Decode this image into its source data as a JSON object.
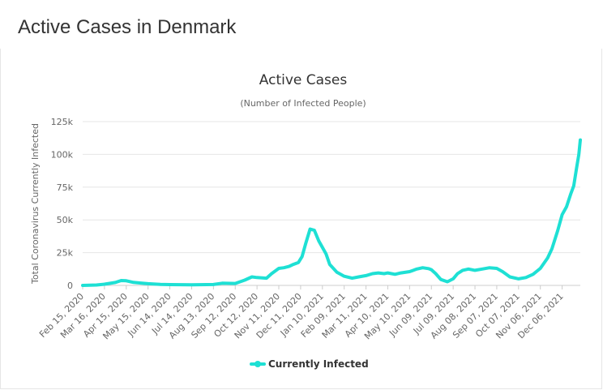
{
  "page": {
    "title": "Active Cases in Denmark"
  },
  "chart_data": {
    "type": "line",
    "title": "Active Cases",
    "subtitle": "(Number of Infected People)",
    "xlabel": "",
    "ylabel": "Total Coronavirus Currently Infected",
    "ylim": [
      0,
      125000
    ],
    "yticks": [
      0,
      25000,
      50000,
      75000,
      100000,
      125000
    ],
    "ytick_labels": [
      "0",
      "25k",
      "50k",
      "75k",
      "100k",
      "125k"
    ],
    "x_range": [
      "Feb 15, 2020",
      "Dec 31, 2021"
    ],
    "xtick_labels": [
      "Feb 15, 2020",
      "Mar 16, 2020",
      "Apr 15, 2020",
      "May 15, 2020",
      "Jun 14, 2020",
      "Jul 14, 2020",
      "Aug 13, 2020",
      "Sep 12, 2020",
      "Oct 12, 2020",
      "Nov 11, 2020",
      "Dec 11, 2020",
      "Jan 10, 2021",
      "Feb 09, 2021",
      "Mar 11, 2021",
      "Apr 10, 2021",
      "May 10, 2021",
      "Jun 09, 2021",
      "Jul 09, 2021",
      "Aug 08, 2021",
      "Sep 07, 2021",
      "Oct 07, 2021",
      "Nov 06, 2021",
      "Dec 06, 2021"
    ],
    "grid": true,
    "legend": "bottom-center",
    "series": [
      {
        "name": "Currently Infected",
        "color": "#1ee0d4",
        "points": [
          [
            "Feb 15, 2020",
            0
          ],
          [
            "Mar 05, 2020",
            300
          ],
          [
            "Mar 16, 2020",
            900
          ],
          [
            "Mar 31, 2020",
            2200
          ],
          [
            "Apr 08, 2020",
            3700
          ],
          [
            "Apr 15, 2020",
            3500
          ],
          [
            "Apr 25, 2020",
            2300
          ],
          [
            "May 05, 2020",
            1800
          ],
          [
            "May 15, 2020",
            1300
          ],
          [
            "Jun 01, 2020",
            800
          ],
          [
            "Jun 14, 2020",
            600
          ],
          [
            "Jul 14, 2020",
            500
          ],
          [
            "Aug 13, 2020",
            700
          ],
          [
            "Aug 25, 2020",
            1700
          ],
          [
            "Sep 12, 2020",
            1500
          ],
          [
            "Sep 25, 2020",
            4000
          ],
          [
            "Oct 05, 2020",
            6500
          ],
          [
            "Oct 12, 2020",
            6000
          ],
          [
            "Oct 25, 2020",
            5500
          ],
          [
            "Nov 01, 2020",
            9000
          ],
          [
            "Nov 11, 2020",
            13000
          ],
          [
            "Nov 18, 2020",
            13500
          ],
          [
            "Nov 25, 2020",
            14500
          ],
          [
            "Dec 01, 2020",
            16000
          ],
          [
            "Dec 08, 2020",
            17500
          ],
          [
            "Dec 13, 2020",
            22000
          ],
          [
            "Dec 18, 2020",
            32000
          ],
          [
            "Dec 24, 2020",
            43000
          ],
          [
            "Dec 30, 2020",
            42000
          ],
          [
            "Jan 05, 2021",
            34000
          ],
          [
            "Jan 10, 2021",
            29000
          ],
          [
            "Jan 15, 2021",
            24000
          ],
          [
            "Jan 20, 2021",
            16000
          ],
          [
            "Jan 30, 2021",
            10000
          ],
          [
            "Feb 09, 2021",
            7000
          ],
          [
            "Feb 20, 2021",
            5500
          ],
          [
            "Mar 01, 2021",
            6500
          ],
          [
            "Mar 11, 2021",
            7500
          ],
          [
            "Mar 20, 2021",
            9000
          ],
          [
            "Mar 28, 2021",
            9500
          ],
          [
            "Apr 05, 2021",
            9000
          ],
          [
            "Apr 10, 2021",
            9500
          ],
          [
            "Apr 20, 2021",
            8500
          ],
          [
            "Apr 28, 2021",
            9500
          ],
          [
            "May 10, 2021",
            10500
          ],
          [
            "May 20, 2021",
            12500
          ],
          [
            "May 28, 2021",
            13500
          ],
          [
            "Jun 05, 2021",
            12800
          ],
          [
            "Jun 09, 2021",
            12000
          ],
          [
            "Jun 15, 2021",
            9000
          ],
          [
            "Jun 22, 2021",
            4500
          ],
          [
            "Jul 01, 2021",
            2800
          ],
          [
            "Jul 09, 2021",
            5000
          ],
          [
            "Jul 15, 2021",
            9000
          ],
          [
            "Jul 22, 2021",
            11500
          ],
          [
            "Jul 30, 2021",
            12500
          ],
          [
            "Aug 08, 2021",
            11500
          ],
          [
            "Aug 18, 2021",
            12500
          ],
          [
            "Aug 28, 2021",
            13500
          ],
          [
            "Sep 07, 2021",
            13000
          ],
          [
            "Sep 15, 2021",
            10500
          ],
          [
            "Sep 25, 2021",
            6500
          ],
          [
            "Oct 07, 2021",
            5000
          ],
          [
            "Oct 17, 2021",
            6000
          ],
          [
            "Oct 27, 2021",
            8500
          ],
          [
            "Nov 06, 2021",
            13000
          ],
          [
            "Nov 16, 2021",
            21000
          ],
          [
            "Nov 22, 2021",
            28000
          ],
          [
            "Nov 30, 2021",
            42000
          ],
          [
            "Dec 06, 2021",
            54000
          ],
          [
            "Dec 12, 2021",
            60000
          ],
          [
            "Dec 18, 2021",
            70000
          ],
          [
            "Dec 22, 2021",
            76000
          ],
          [
            "Dec 26, 2021",
            90000
          ],
          [
            "Dec 29, 2021",
            100000
          ],
          [
            "Dec 31, 2021",
            111000
          ]
        ]
      }
    ]
  }
}
